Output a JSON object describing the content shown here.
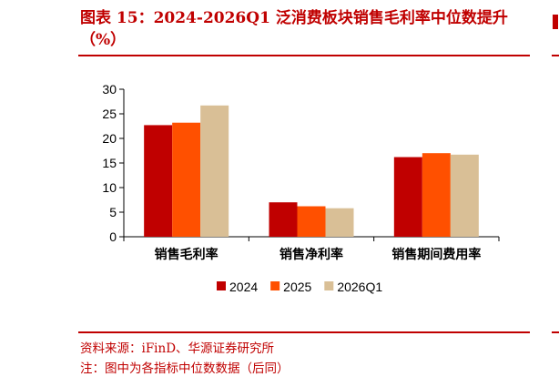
{
  "header": {
    "title": "图表 15：2024-2026Q1 泛消费板块销售毛利率中位数提升（%）"
  },
  "chart_data": {
    "type": "bar",
    "categories": [
      "销售毛利率",
      "销售净利率",
      "销售期间费用率"
    ],
    "series": [
      {
        "name": "2024",
        "color": "#c00000",
        "values": [
          22.7,
          7.0,
          16.2
        ]
      },
      {
        "name": "2025",
        "color": "#ff5000",
        "values": [
          23.2,
          6.2,
          17.0
        ]
      },
      {
        "name": "2026Q1",
        "color": "#d9bf96",
        "values": [
          26.7,
          5.8,
          16.7
        ]
      }
    ],
    "ylim": [
      0,
      30
    ],
    "yticks": [
      0,
      5,
      10,
      15,
      20,
      25,
      30
    ],
    "grid": false,
    "legend_position": "bottom"
  },
  "footer": {
    "source": "资料来源：iFinD、华源证券研究所",
    "note": "注：图中为各指标中位数数据（后同）"
  }
}
